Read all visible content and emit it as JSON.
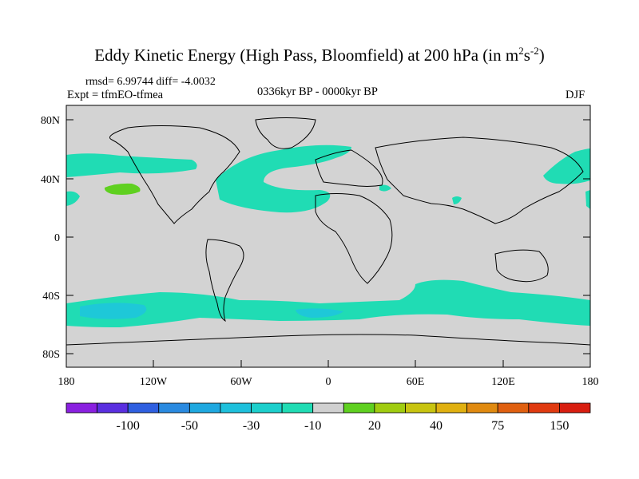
{
  "title": {
    "main": "Eddy Kinetic Energy (High Pass, Bloomfield) at 200 hPa (in m",
    "sup1": "2",
    "mid": "s",
    "sup2": "-2",
    "end": ")"
  },
  "stats": "rmsd= 6.99744 diff= -4.0032",
  "experiment": "Expt = tfmEO-tfmea",
  "period": "0336kyr BP - 0000kyr BP",
  "season": "DJF",
  "y_ticks": [
    "80N",
    "40N",
    "0",
    "40S",
    "80S"
  ],
  "x_ticks": [
    "180",
    "120W",
    "60W",
    "0",
    "60E",
    "120E",
    "180"
  ],
  "colorbar": {
    "colors": [
      "#8a20e0",
      "#5a2fe0",
      "#2f5fe0",
      "#2a8ae0",
      "#1fa8e0",
      "#1ec0dc",
      "#1ccfcc",
      "#20dcb4",
      "#d0d0d0",
      "#5fd020",
      "#a0cc10",
      "#c8c410",
      "#e0b010",
      "#e08a10",
      "#e06010",
      "#e03a10",
      "#d81e10"
    ],
    "labels": [
      "-100",
      "-50",
      "-30",
      "-10",
      "20",
      "40",
      "75",
      "150"
    ]
  },
  "map_colors": {
    "background": "#d3d3d3",
    "teal": "#20dcb4",
    "cyan": "#1ec8d8",
    "green": "#5fd020"
  }
}
